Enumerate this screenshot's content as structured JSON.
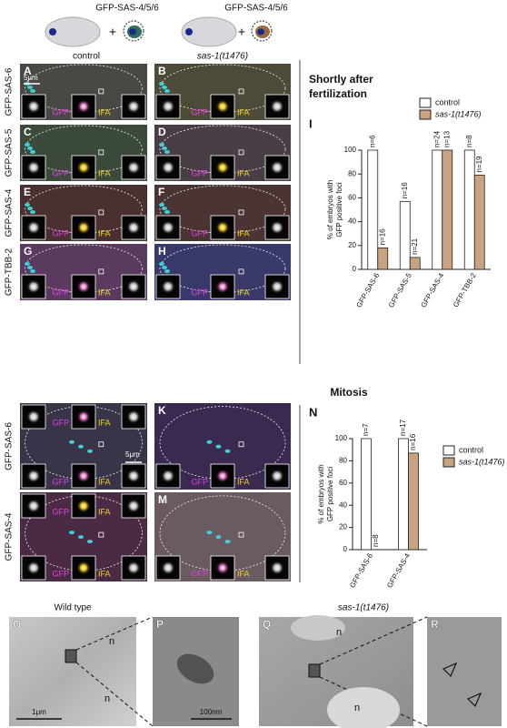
{
  "schematic": {
    "labels": [
      "GFP-SAS-4/5/6",
      "GFP-SAS-4/5/6"
    ],
    "plus": [
      "+",
      "+"
    ]
  },
  "columns": [
    "control",
    "sas-1(t1476)"
  ],
  "fertilization": {
    "heading": [
      "Shortly after",
      "fertilization"
    ],
    "rows": [
      {
        "label": "GFP-SAS-6",
        "panels": [
          "A",
          "B"
        ]
      },
      {
        "label": "GFP-SAS-5",
        "panels": [
          "C",
          "D"
        ]
      },
      {
        "label": "GFP-SAS-4",
        "panels": [
          "E",
          "F"
        ]
      },
      {
        "label": "GFP-TBB-2",
        "panels": [
          "G",
          "H"
        ]
      }
    ],
    "scale_bar": "5μm",
    "inset_labels": [
      "GFP",
      "IFA"
    ]
  },
  "mitosis": {
    "heading": "Mitosis",
    "rows": [
      {
        "label": "GFP-SAS-6",
        "panels": [
          "J",
          "K"
        ]
      },
      {
        "label": "GFP-SAS-4",
        "panels": [
          "L",
          "M"
        ]
      }
    ],
    "scale_bar": "5μm",
    "inset_labels": [
      "GFP",
      "IFA"
    ]
  },
  "chart_data": [
    {
      "type": "bar",
      "panel_label": "I",
      "ylabel": [
        "% of embryos with",
        "GFP positive foci"
      ],
      "categories": [
        "GFP-SAS-6",
        "GFP-SAS-5",
        "GFP-SAS-4",
        "GFP-TBB-2"
      ],
      "series": [
        {
          "name": "control",
          "color": "#ffffff",
          "values": [
            100,
            57,
            100,
            100
          ],
          "n_labels": [
            "n=6",
            "n=16",
            "n=24",
            "n=8"
          ]
        },
        {
          "name": "sas-1(t1476)",
          "color": "#c9a27f",
          "values": [
            18,
            10,
            100,
            79
          ],
          "n_labels": [
            "n=16",
            "n=21",
            "n=13",
            "n=19"
          ]
        }
      ],
      "ylim": [
        0,
        100
      ],
      "yticks": [
        0,
        20,
        40,
        60,
        80,
        100
      ],
      "legend": "above"
    },
    {
      "type": "bar",
      "panel_label": "N",
      "ylabel": [
        "% of embryos with",
        "GFP positive foci"
      ],
      "categories": [
        "GFP-SAS-6",
        "GFP-SAS-4"
      ],
      "series": [
        {
          "name": "control",
          "color": "#ffffff",
          "values": [
            100,
            100
          ],
          "n_labels": [
            "n=7",
            "n=17"
          ]
        },
        {
          "name": "sas-1(t1476)",
          "color": "#c9a27f",
          "values": [
            0,
            87
          ],
          "n_labels": [
            "n=8",
            "n=16"
          ]
        }
      ],
      "ylim": [
        0,
        100
      ],
      "yticks": [
        0,
        20,
        40,
        60,
        80,
        100
      ],
      "legend": "right"
    }
  ],
  "em": {
    "columns": [
      "Wild type",
      "sas-1(t1476)"
    ],
    "panels": [
      "O",
      "P",
      "Q",
      "R"
    ],
    "nucleus_label": "n",
    "scale_bars": [
      "1μm",
      "100nm"
    ]
  }
}
